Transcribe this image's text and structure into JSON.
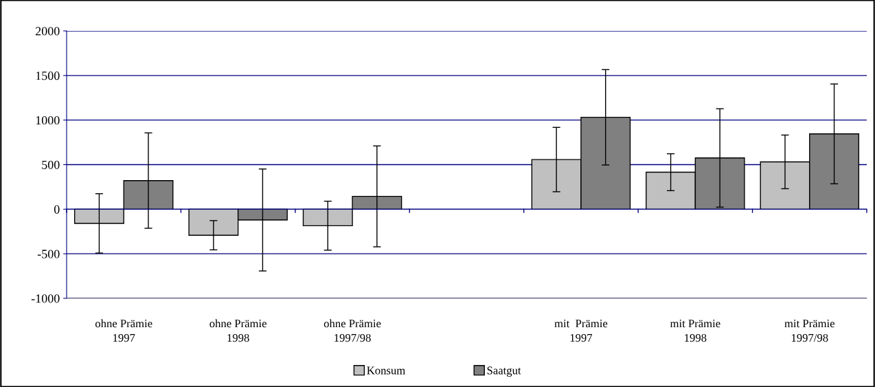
{
  "chart_data": {
    "type": "bar",
    "categories": [
      "ohne Prämie\n1997",
      "ohne Prämie\n1998",
      "ohne Prämie\n1997/98",
      null,
      "mit  Prämie\n1997",
      "mit Prämie\n1998",
      "mit Prämie\n1997/98"
    ],
    "series": [
      {
        "name": "Konsum",
        "color": "#c0c0c0",
        "values": [
          -159,
          -292,
          -185,
          null,
          557,
          415,
          531
        ],
        "errors": [
          333,
          164,
          275,
          null,
          361,
          207,
          301
        ]
      },
      {
        "name": "Saatgut",
        "color": "#808080",
        "values": [
          321,
          -121,
          144,
          null,
          1031,
          575,
          845
        ],
        "errors": [
          535,
          572,
          566,
          null,
          535,
          552,
          560
        ]
      }
    ],
    "ylim": [
      -1000,
      2000
    ],
    "yticks": [
      -1000,
      -500,
      0,
      500,
      1000,
      1500,
      2000
    ],
    "grid": "y",
    "legend": "bottom"
  }
}
